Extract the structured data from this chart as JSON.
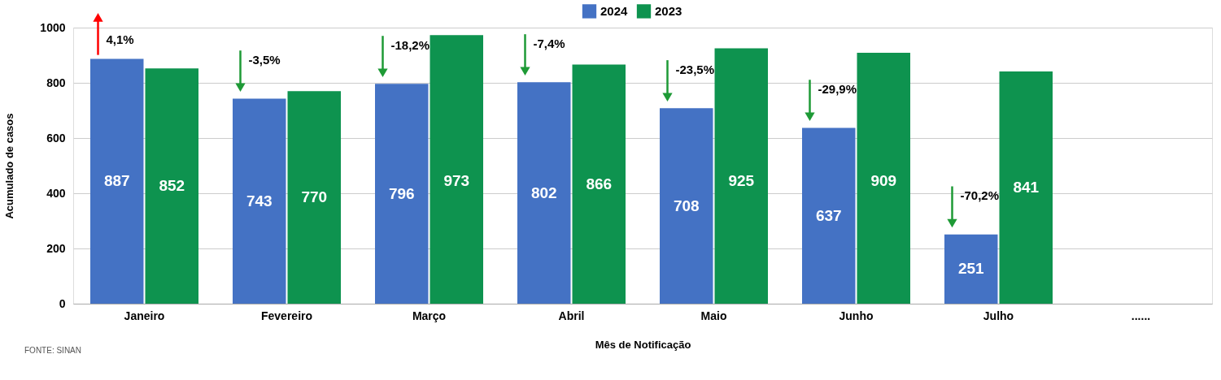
{
  "chart_data": {
    "type": "bar",
    "categories": [
      "Janeiro",
      "Fevereiro",
      "Março",
      "Abril",
      "Maio",
      "Junho",
      "Julho",
      "......"
    ],
    "series": [
      {
        "name": "2024",
        "color": "#4472c4",
        "values": [
          887,
          743,
          796,
          802,
          708,
          637,
          251,
          null
        ]
      },
      {
        "name": "2023",
        "color": "#0e934f",
        "values": [
          852,
          770,
          973,
          866,
          925,
          909,
          841,
          null
        ]
      }
    ],
    "xlabel": "Mês de Notificação",
    "ylabel": "Acumulado de casos",
    "ylim": [
      0,
      1000
    ],
    "yticks": [
      0,
      200,
      400,
      600,
      800,
      1000
    ],
    "grid": "y",
    "legend": "top",
    "data_labels": true,
    "annotations": [
      {
        "text": "4,1%",
        "x": "Janeiro",
        "y": 887
      },
      {
        "text": "-3,5%",
        "x": "Fevereiro",
        "y": 743
      },
      {
        "text": "-18,2%",
        "x": "Março",
        "y": 796
      },
      {
        "text": "-7,4%",
        "x": "Abril",
        "y": 802
      },
      {
        "text": "-23,5%",
        "x": "Maio",
        "y": 708
      },
      {
        "text": "-29,9%",
        "x": "Junho",
        "y": 637
      },
      {
        "text": "-70,2%",
        "x": "Julho",
        "y": 251
      },
      "FONTE: SINAN"
    ]
  }
}
